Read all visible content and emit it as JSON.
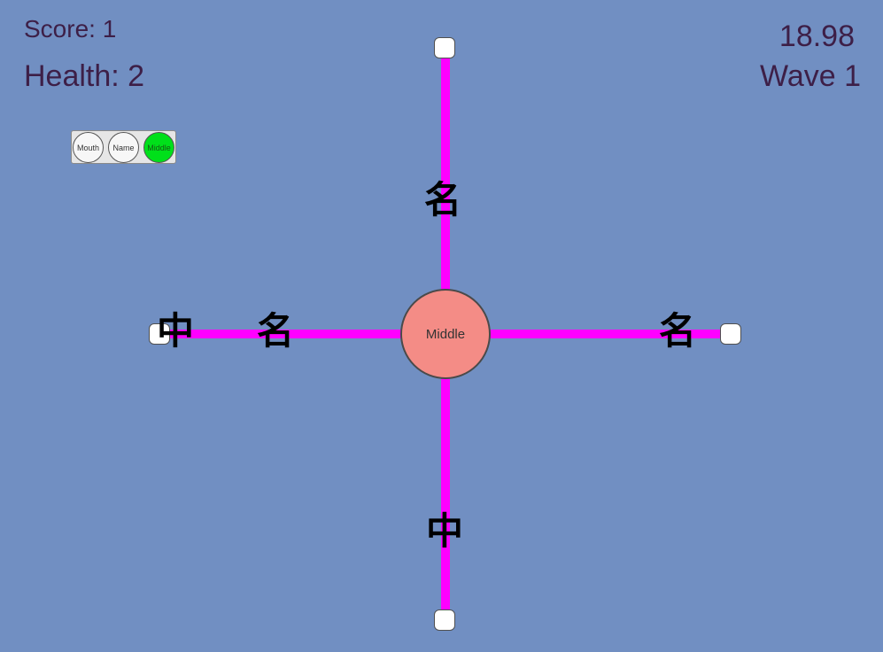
{
  "hud": {
    "score": "Score: 1",
    "health": "Health: 2",
    "timer": "18.98",
    "wave": "Wave 1"
  },
  "mode_selector": {
    "buttons": [
      {
        "label": "Mouth",
        "selected": false
      },
      {
        "label": "Name",
        "selected": false
      },
      {
        "label": "Middle",
        "selected": true
      }
    ],
    "selected_color": "#00E01A"
  },
  "center_target": {
    "label": "Middle",
    "color": "#F48C86"
  },
  "enemies": {
    "top_1": "名",
    "left_1": "中",
    "left_2": "名",
    "right_1": "名",
    "bottom_1": "中"
  },
  "colors": {
    "background": "#718FC2",
    "lane": "#FF00FF",
    "hud_text": "#3D1F47"
  }
}
